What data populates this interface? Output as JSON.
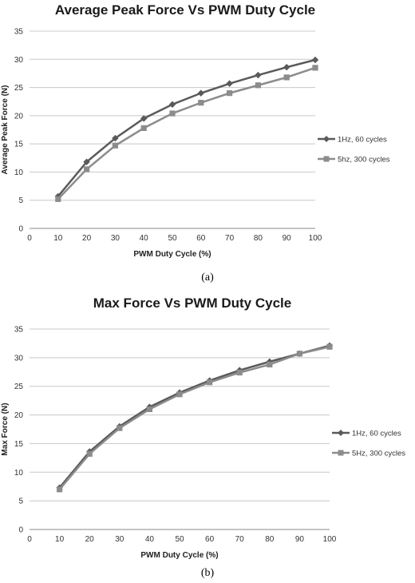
{
  "chart_data": [
    {
      "type": "line",
      "title": "Average Peak Force Vs PWM Duty Cycle",
      "xlabel": "PWM Duty Cycle (%)",
      "ylabel": "Average Peak Force (N)",
      "xlim": [
        0,
        100
      ],
      "ylim": [
        0,
        35
      ],
      "xticks": [
        0,
        10,
        20,
        30,
        40,
        50,
        60,
        70,
        80,
        90,
        100
      ],
      "yticks": [
        0,
        5,
        10,
        15,
        20,
        25,
        30,
        35
      ],
      "grid": "horizontal",
      "legend_position": "right",
      "x": [
        10,
        20,
        30,
        40,
        50,
        60,
        70,
        80,
        90,
        100
      ],
      "series": [
        {
          "name": "1Hz, 60 cycles",
          "marker": "diamond",
          "color": "#5a5a5a",
          "values": [
            5.7,
            11.8,
            16.0,
            19.5,
            22.0,
            24.0,
            25.7,
            27.2,
            28.6,
            29.9
          ]
        },
        {
          "name": "5hz, 300 cycles",
          "marker": "square",
          "color": "#8c8c8c",
          "values": [
            5.2,
            10.5,
            14.7,
            17.8,
            20.4,
            22.3,
            24.0,
            25.4,
            26.8,
            28.5
          ]
        }
      ],
      "caption": "(a)"
    },
    {
      "type": "line",
      "title": "Max Force Vs PWM Duty Cycle",
      "xlabel": "PWM Duty Cycle (%)",
      "ylabel": "Max Force (N)",
      "xlim": [
        0,
        100
      ],
      "ylim": [
        0,
        35
      ],
      "xticks": [
        0,
        10,
        20,
        30,
        40,
        50,
        60,
        70,
        80,
        90,
        100
      ],
      "yticks": [
        0,
        5,
        10,
        15,
        20,
        25,
        30,
        35
      ],
      "grid": "horizontal",
      "legend_position": "right",
      "x": [
        10,
        20,
        30,
        40,
        50,
        60,
        70,
        80,
        90,
        100
      ],
      "series": [
        {
          "name": "1Hz, 60 cycles",
          "marker": "diamond",
          "color": "#5a5a5a",
          "values": [
            7.3,
            13.6,
            18.0,
            21.4,
            23.9,
            26.0,
            27.8,
            29.3,
            30.7,
            32.1
          ]
        },
        {
          "name": "5Hz, 300 cycles",
          "marker": "square",
          "color": "#8c8c8c",
          "values": [
            7.0,
            13.2,
            17.7,
            21.0,
            23.6,
            25.7,
            27.4,
            28.8,
            30.7,
            31.9
          ]
        }
      ],
      "caption": "(b)"
    }
  ]
}
